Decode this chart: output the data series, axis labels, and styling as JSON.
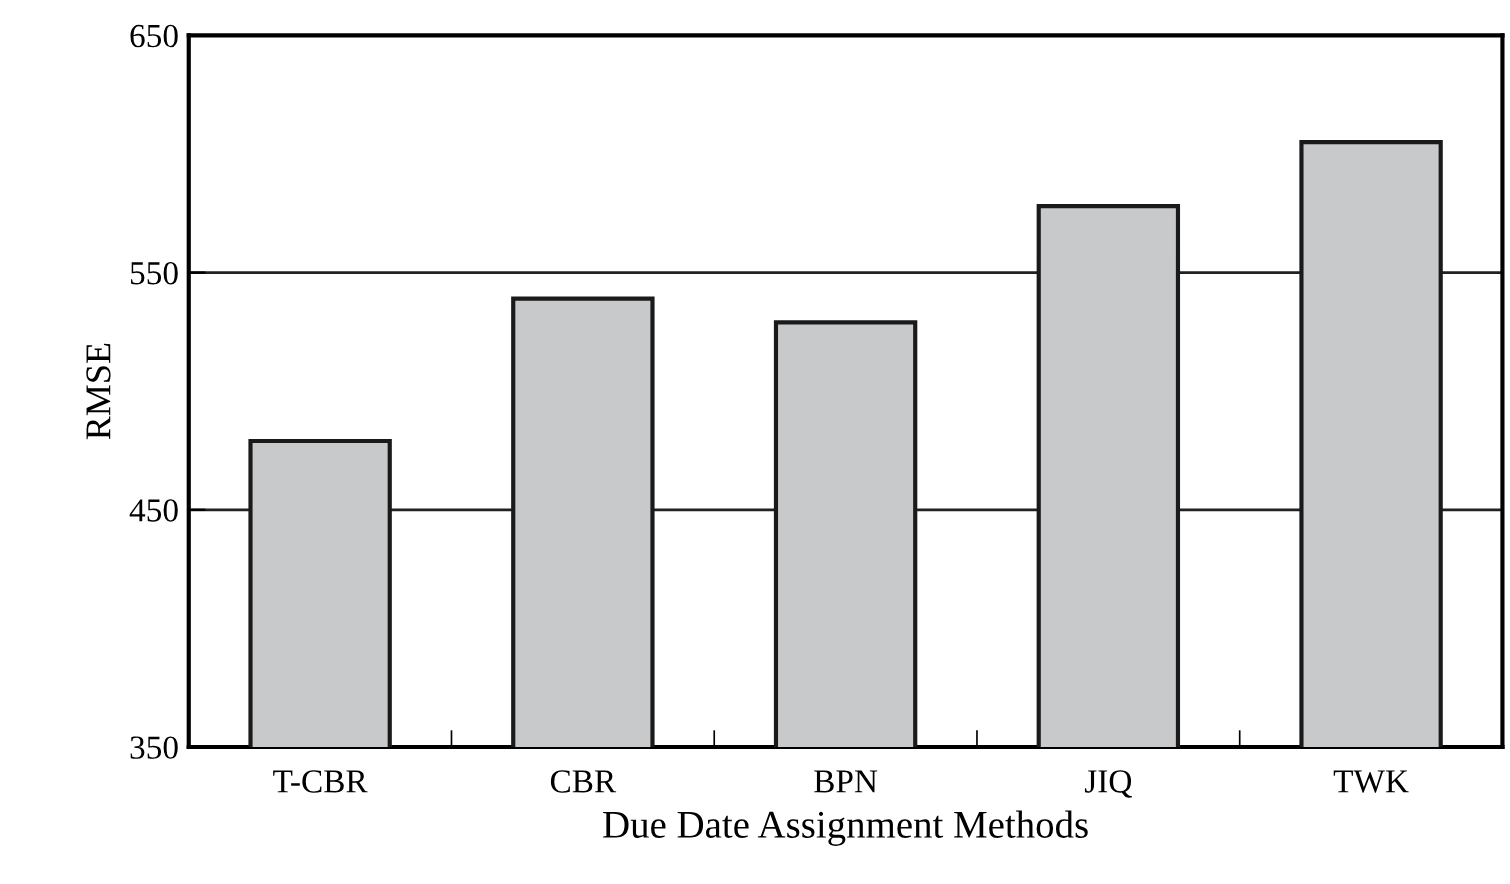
{
  "chart_data": {
    "type": "bar",
    "xlabel": "Due Date Assignment Methods",
    "ylabel": "RMSE",
    "categories": [
      "T-CBR",
      "CBR",
      "BPN",
      "JIQ",
      "TWK"
    ],
    "values": [
      479,
      539,
      529,
      578,
      605
    ],
    "color": "#c8c9cb",
    "ylim": [
      350,
      650
    ],
    "yticks": [
      350,
      450,
      550,
      650
    ],
    "grid": "y"
  }
}
